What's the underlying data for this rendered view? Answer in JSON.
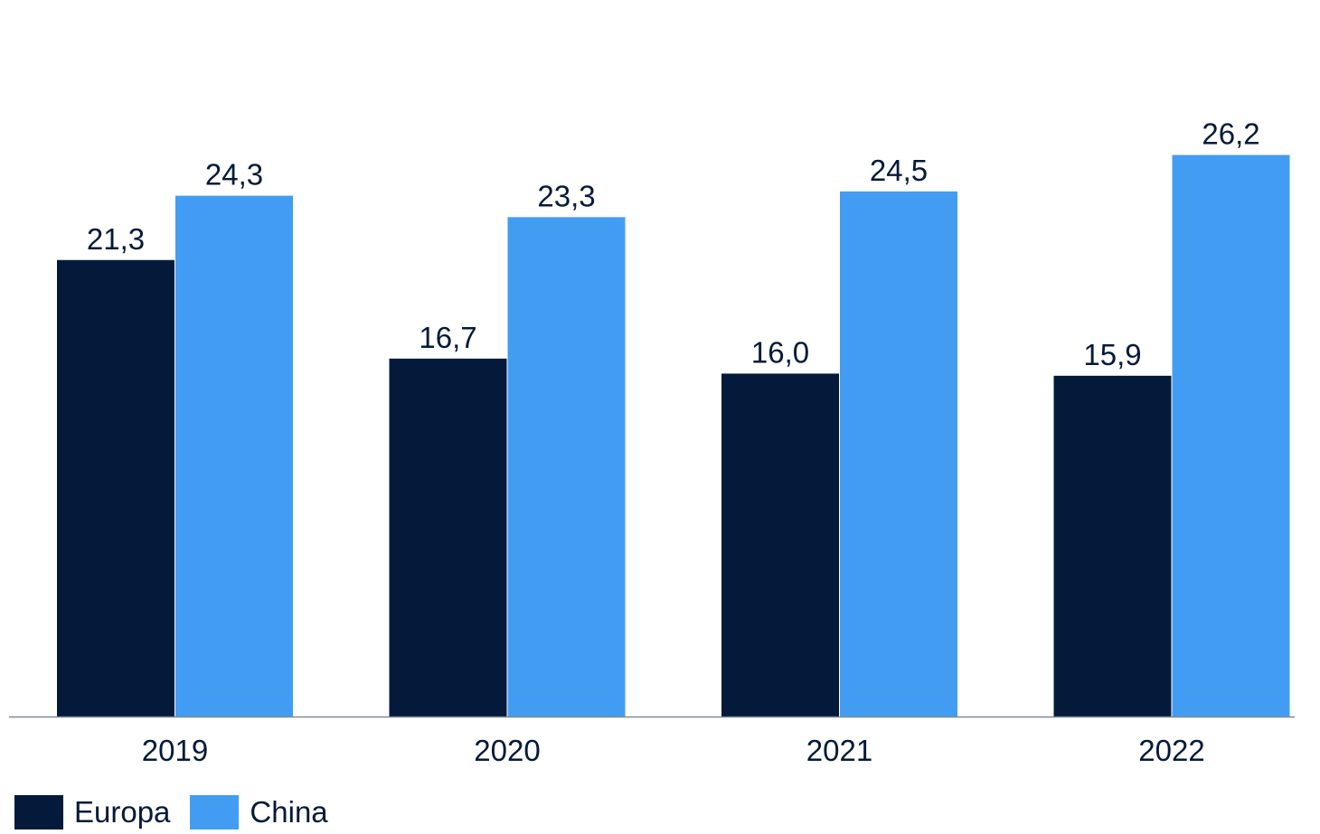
{
  "chart_data": {
    "type": "bar",
    "categories": [
      "2019",
      "2020",
      "2021",
      "2022"
    ],
    "series": [
      {
        "name": "Europa",
        "values": [
          21.3,
          16.7,
          16.0,
          15.9
        ],
        "labels": [
          "21,3",
          "16,7",
          "16,0",
          "15,9"
        ],
        "color": "#041a3a"
      },
      {
        "name": "China",
        "values": [
          24.3,
          23.3,
          24.5,
          26.2
        ],
        "labels": [
          "24,3",
          "23,3",
          "24,5",
          "26,2"
        ],
        "color": "#429df2"
      }
    ],
    "ylim": [
      0,
      30
    ],
    "grid": false,
    "legend_position": "bottom-left"
  }
}
